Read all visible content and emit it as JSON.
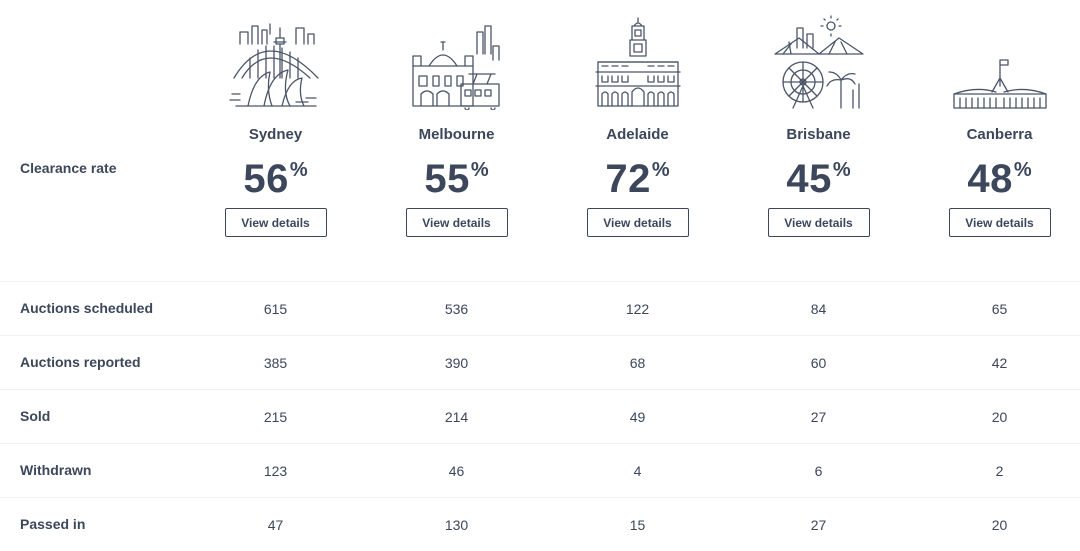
{
  "header": {
    "label": "Clearance rate"
  },
  "cities": [
    {
      "name": "Sydney",
      "rate": "56",
      "pct": "%",
      "button": "View details",
      "icon": "sydney-skyline-icon"
    },
    {
      "name": "Melbourne",
      "rate": "55",
      "pct": "%",
      "button": "View details",
      "icon": "melbourne-skyline-icon"
    },
    {
      "name": "Adelaide",
      "rate": "72",
      "pct": "%",
      "button": "View details",
      "icon": "adelaide-town-hall-icon"
    },
    {
      "name": "Brisbane",
      "rate": "45",
      "pct": "%",
      "button": "View details",
      "icon": "brisbane-skyline-icon"
    },
    {
      "name": "Canberra",
      "rate": "48",
      "pct": "%",
      "button": "View details",
      "icon": "canberra-parliament-icon"
    }
  ],
  "rows": [
    {
      "label": "Auctions scheduled",
      "values": [
        "615",
        "536",
        "122",
        "84",
        "65"
      ]
    },
    {
      "label": "Auctions reported",
      "values": [
        "385",
        "390",
        "68",
        "60",
        "42"
      ]
    },
    {
      "label": "Sold",
      "values": [
        "215",
        "214",
        "49",
        "27",
        "20"
      ]
    },
    {
      "label": "Withdrawn",
      "values": [
        "123",
        "46",
        "4",
        "6",
        "2"
      ]
    },
    {
      "label": "Passed in",
      "values": [
        "47",
        "130",
        "15",
        "27",
        "20"
      ]
    }
  ]
}
